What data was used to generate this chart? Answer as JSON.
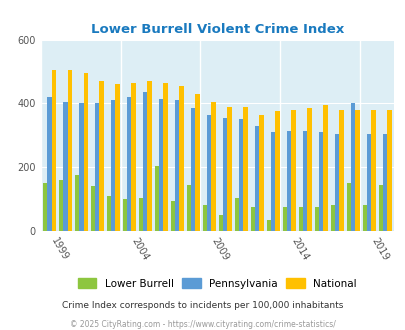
{
  "title": "Lower Burrell Violent Crime Index",
  "years": [
    1999,
    2000,
    2001,
    2002,
    2003,
    2004,
    2005,
    2006,
    2007,
    2008,
    2009,
    2010,
    2011,
    2012,
    2013,
    2014,
    2015,
    2016,
    2017,
    2018,
    2019,
    2020
  ],
  "lower_burrell": [
    150,
    160,
    175,
    140,
    110,
    100,
    105,
    205,
    95,
    145,
    80,
    50,
    105,
    75,
    35,
    75,
    75,
    75,
    80,
    150,
    80,
    145
  ],
  "pennsylvania": [
    420,
    405,
    400,
    400,
    410,
    420,
    435,
    415,
    410,
    385,
    365,
    355,
    350,
    330,
    310,
    315,
    315,
    310,
    305,
    400,
    305,
    305
  ],
  "national": [
    505,
    505,
    495,
    470,
    460,
    465,
    470,
    465,
    455,
    430,
    405,
    390,
    390,
    365,
    375,
    380,
    385,
    395,
    380,
    380,
    380,
    380
  ],
  "colors": {
    "lower_burrell": "#8dc63f",
    "pennsylvania": "#5b9bd5",
    "national": "#ffc000"
  },
  "bg_color": "#ddeef5",
  "ylim": [
    0,
    600
  ],
  "yticks": [
    0,
    200,
    400,
    600
  ],
  "xtick_years": [
    1999,
    2004,
    2009,
    2014,
    2019
  ],
  "legend_labels": [
    "Lower Burrell",
    "Pennsylvania",
    "National"
  ],
  "subtitle": "Crime Index corresponds to incidents per 100,000 inhabitants",
  "footer": "© 2025 CityRating.com - https://www.cityrating.com/crime-statistics/",
  "title_color": "#1a7abf",
  "subtitle_color": "#333333",
  "footer_color": "#999999",
  "grid_color": "#ffffff",
  "bar_width": 0.27,
  "figsize": [
    4.06,
    3.3
  ],
  "dpi": 100
}
